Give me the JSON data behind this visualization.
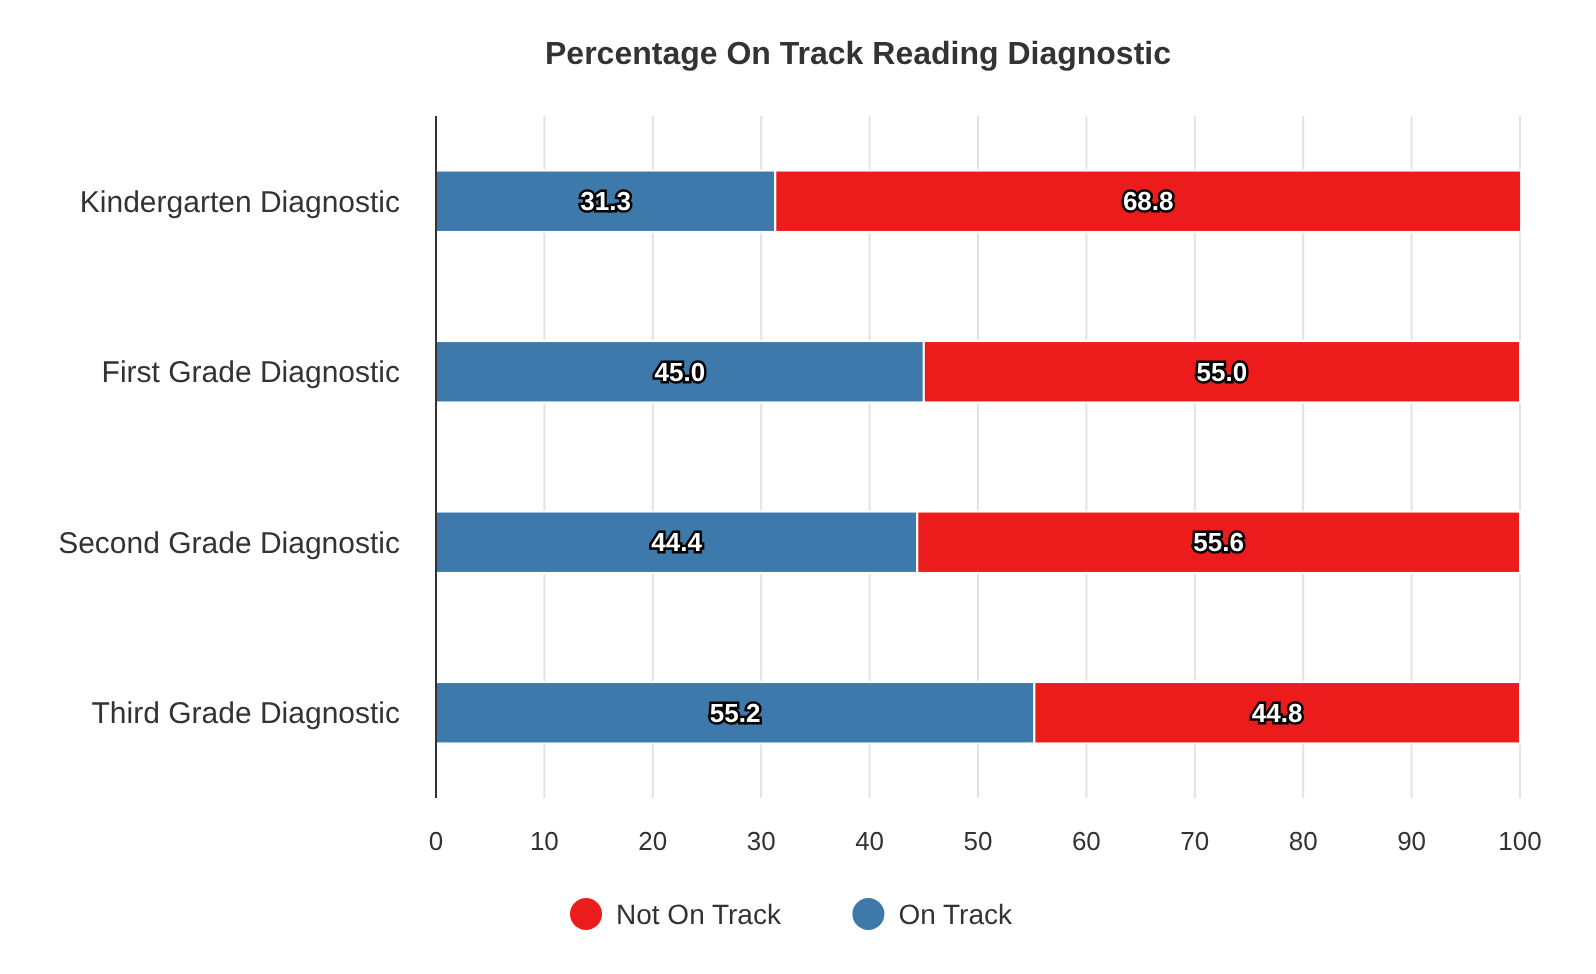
{
  "chart_data": {
    "type": "bar",
    "title": "Percentage On Track Reading Diagnostic",
    "orientation": "horizontal",
    "stacked": true,
    "categories": [
      "Kindergarten Diagnostic",
      "First Grade Diagnostic",
      "Second Grade Diagnostic",
      "Third Grade Diagnostic"
    ],
    "series": [
      {
        "name": "On Track",
        "color": "#3d79aa",
        "values": [
          31.3,
          45.0,
          44.4,
          55.2
        ],
        "value_labels": [
          "31.3",
          "45.0",
          "44.4",
          "55.2"
        ]
      },
      {
        "name": "Not On Track",
        "color": "#ec1c1c",
        "values": [
          68.8,
          55.0,
          55.6,
          44.8
        ],
        "value_labels": [
          "68.8",
          "55.0",
          "55.6",
          "44.8"
        ]
      }
    ],
    "xlim": [
      0,
      100
    ],
    "xticks": [
      0,
      10,
      20,
      30,
      40,
      50,
      60,
      70,
      80,
      90,
      100
    ],
    "grid": "x",
    "legend": "bottom"
  }
}
